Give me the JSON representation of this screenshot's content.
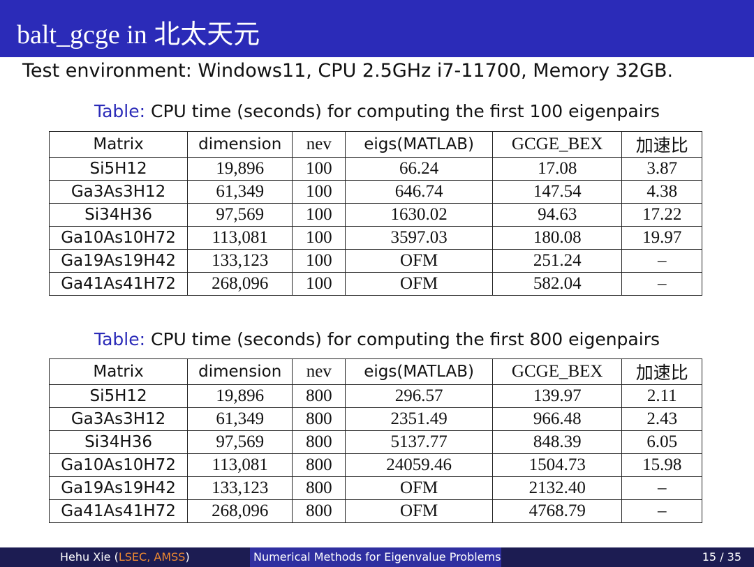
{
  "header": {
    "title": "balt_gcge in 北太天元"
  },
  "environment": "Test environment: Windows11, CPU 2.5GHz i7-11700, Memory 32GB.",
  "tables": [
    {
      "caption_label": "Table:",
      "caption": "CPU time (seconds) for computing the first 100 eigenpairs",
      "columns": [
        "Matrix",
        "dimension",
        "nev",
        "eigs(MATLAB)",
        "GCGE_BEX",
        "加速比"
      ],
      "rows": [
        [
          "Si5H12",
          "19,896",
          "100",
          "66.24",
          "17.08",
          "3.87"
        ],
        [
          "Ga3As3H12",
          "61,349",
          "100",
          "646.74",
          "147.54",
          "4.38"
        ],
        [
          "Si34H36",
          "97,569",
          "100",
          "1630.02",
          "94.63",
          "17.22"
        ],
        [
          "Ga10As10H72",
          "113,081",
          "100",
          "3597.03",
          "180.08",
          "19.97"
        ],
        [
          "Ga19As19H42",
          "133,123",
          "100",
          "OFM",
          "251.24",
          "–"
        ],
        [
          "Ga41As41H72",
          "268,096",
          "100",
          "OFM",
          "582.04",
          "–"
        ]
      ]
    },
    {
      "caption_label": "Table:",
      "caption": "CPU time (seconds) for computing the first 800 eigenpairs",
      "columns": [
        "Matrix",
        "dimension",
        "nev",
        "eigs(MATLAB)",
        "GCGE_BEX",
        "加速比"
      ],
      "rows": [
        [
          "Si5H12",
          "19,896",
          "800",
          "296.57",
          "139.97",
          "2.11"
        ],
        [
          "Ga3As3H12",
          "61,349",
          "800",
          "2351.49",
          "966.48",
          "2.43"
        ],
        [
          "Si34H36",
          "97,569",
          "800",
          "5137.77",
          "848.39",
          "6.05"
        ],
        [
          "Ga10As10H72",
          "113,081",
          "800",
          "24059.46",
          "1504.73",
          "15.98"
        ],
        [
          "Ga19As19H42",
          "133,123",
          "800",
          "OFM",
          "2132.40",
          "–"
        ],
        [
          "Ga41As41H72",
          "268,096",
          "800",
          "OFM",
          "4768.79",
          "–"
        ]
      ]
    }
  ],
  "footer": {
    "author": "Hehu Xie",
    "brackets": [
      "(",
      ")"
    ],
    "affiliation": "LSEC, AMSS",
    "talk": "Numerical Methods for Eigenvalue Problems",
    "page": "15 / 35"
  }
}
